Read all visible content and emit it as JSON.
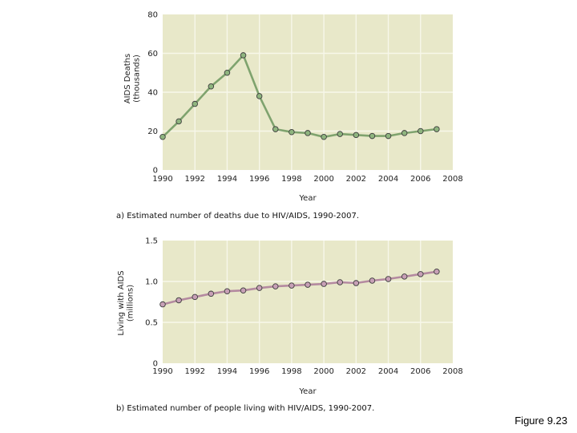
{
  "figure_label": "Figure 9.23",
  "colors": {
    "plot_bg": "#e8e8c9",
    "grid": "#f7f7ea",
    "line_a": "#7fa36e",
    "marker_a": "#8fb57f",
    "line_b": "#b48aa0",
    "marker_b": "#c7a0b6",
    "marker_stroke": "#3d3d3d"
  },
  "chart_data": [
    {
      "id": "a",
      "type": "line",
      "caption": "a) Estimated number of deaths due to HIV/AIDS, 1990-2007.",
      "xlabel": "Year",
      "ylabel_lines": [
        "AIDS Deaths",
        "(thousands)"
      ],
      "xlim": [
        1990,
        2008
      ],
      "ylim": [
        0,
        80
      ],
      "x_ticks": [
        1990,
        1992,
        1994,
        1996,
        1998,
        2000,
        2002,
        2004,
        2006,
        2008
      ],
      "y_ticks": [
        0,
        20,
        40,
        60,
        80
      ],
      "y_tick_labels": [
        "0",
        "20",
        "40",
        "60",
        "80"
      ],
      "series": [
        {
          "name": "AIDS deaths",
          "x": [
            1990,
            1991,
            1992,
            1993,
            1994,
            1995,
            1996,
            1997,
            1998,
            1999,
            2000,
            2001,
            2002,
            2003,
            2004,
            2005,
            2006,
            2007
          ],
          "y": [
            17,
            25,
            34,
            43,
            50,
            59,
            38,
            21,
            19.5,
            19,
            17,
            18.5,
            18,
            17.5,
            17.5,
            19,
            20,
            21
          ]
        }
      ]
    },
    {
      "id": "b",
      "type": "line",
      "caption": "b) Estimated number of people living with HIV/AIDS, 1990-2007.",
      "xlabel": "Year",
      "ylabel_lines": [
        "Living with AIDS",
        "(millions)"
      ],
      "xlim": [
        1990,
        2008
      ],
      "ylim": [
        0,
        1.5
      ],
      "x_ticks": [
        1990,
        1992,
        1994,
        1996,
        1998,
        2000,
        2002,
        2004,
        2006,
        2008
      ],
      "y_ticks": [
        0,
        0.5,
        1.0,
        1.5
      ],
      "y_tick_labels": [
        "0",
        "0.5",
        "1.0",
        "1.5"
      ],
      "series": [
        {
          "name": "People living with HIV/AIDS",
          "x": [
            1990,
            1991,
            1992,
            1993,
            1994,
            1995,
            1996,
            1997,
            1998,
            1999,
            2000,
            2001,
            2002,
            2003,
            2004,
            2005,
            2006,
            2007
          ],
          "y": [
            0.72,
            0.77,
            0.81,
            0.85,
            0.88,
            0.89,
            0.92,
            0.94,
            0.95,
            0.96,
            0.97,
            0.99,
            0.98,
            1.01,
            1.03,
            1.06,
            1.09,
            1.12
          ]
        }
      ]
    }
  ]
}
